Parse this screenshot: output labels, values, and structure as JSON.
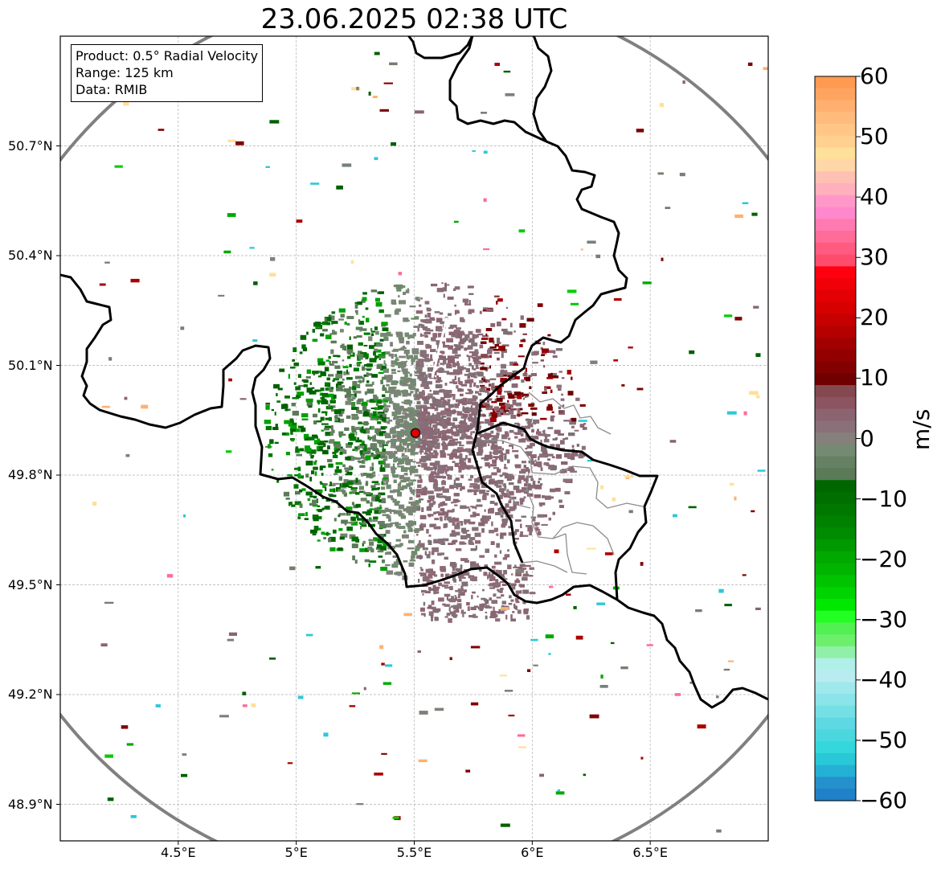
{
  "title": "23.06.2025 02:38 UTC",
  "info_box": {
    "product": "Product: 0.5° Radial Velocity",
    "range": "Range: 125 km",
    "data": "Data: RMIB"
  },
  "map": {
    "lon_range": [
      4.0,
      7.0
    ],
    "lat_range": [
      48.8,
      51.0
    ],
    "longitude_ticks": [
      "4.5°E",
      "5°E",
      "5.5°E",
      "6°E",
      "6.5°E"
    ],
    "latitude_ticks": [
      "50.7°N",
      "50.4°N",
      "50.1°N",
      "49.8°N",
      "49.5°N",
      "49.2°N",
      "48.9°N"
    ],
    "radar_site": {
      "lon": 5.505,
      "lat": 49.915,
      "marker_color": "#e00000"
    },
    "range_ring_color": "#808080",
    "border_color": "#000000",
    "admin_border_color": "#8c8c8c",
    "grid": true
  },
  "colorbar": {
    "label": "m/s",
    "min": -60,
    "max": 60,
    "tick_labels": [
      "60",
      "50",
      "40",
      "30",
      "20",
      "10",
      "0",
      "−10",
      "−20",
      "−30",
      "−40",
      "−50",
      "−60"
    ],
    "colors_top_to_bottom": [
      "#ff9a50",
      "#ffa460",
      "#ffb070",
      "#ffbb7c",
      "#ffc686",
      "#ffd090",
      "#ffe09a",
      "#ffd6a8",
      "#ffc0b4",
      "#ffb0bc",
      "#ff98c8",
      "#ff88cc",
      "#ff7ab0",
      "#ff6c98",
      "#ff5a80",
      "#ff4c6c",
      "#ff0010",
      "#f00008",
      "#e20004",
      "#d60000",
      "#c60000",
      "#b60000",
      "#a20000",
      "#920000",
      "#820000",
      "#700000",
      "#844850",
      "#8c5460",
      "#8a6470",
      "#8a7078",
      "#86807c",
      "#748a72",
      "#668064",
      "#5a7a58",
      "#006600",
      "#006e00",
      "#007800",
      "#008200",
      "#008c00",
      "#009a00",
      "#00a800",
      "#00b400",
      "#00c400",
      "#00d400",
      "#00e800",
      "#22ff22",
      "#52f052",
      "#6cf06c",
      "#90f0a8",
      "#b0f0e8",
      "#b8ecf0",
      "#a0e8ec",
      "#8ae4ea",
      "#74e0e6",
      "#5ed8e2",
      "#4ad8de",
      "#34d8dc",
      "#28c8d8",
      "#24b0d4",
      "#2490cc",
      "#2080c8"
    ]
  }
}
